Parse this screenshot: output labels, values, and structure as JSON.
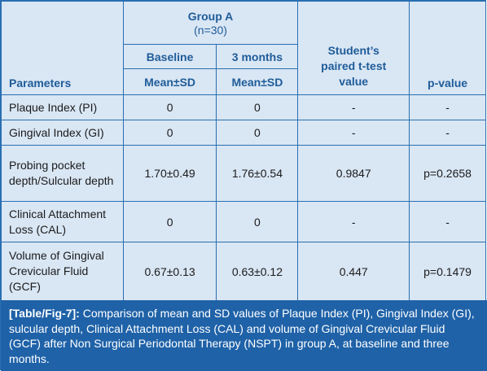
{
  "header": {
    "group": "Group A",
    "n": "(n=30)",
    "baseline": "Baseline",
    "three_months": "3 months",
    "parameters": "Parameters",
    "mean_sd_1": "Mean±SD",
    "mean_sd_2": "Mean±SD",
    "ttest": "Student’s paired t-test value",
    "pvalue": "p-value"
  },
  "rows": [
    {
      "param": "Plaque Index (PI)",
      "baseline": "0",
      "months3": "0",
      "t": "-",
      "p": "-"
    },
    {
      "param": "Gingival Index (GI)",
      "baseline": "0",
      "months3": "0",
      "t": "-",
      "p": "-"
    },
    {
      "param": "Probing pocket depth/Sulcular depth",
      "baseline": "1.70±0.49",
      "months3": "1.76±0.54",
      "t": "0.9847",
      "p": "p=0.2658"
    },
    {
      "param": "Clinical Attachment Loss (CAL)",
      "baseline": "0",
      "months3": "0",
      "t": "-",
      "p": "-"
    },
    {
      "param": "Volume of Gingival Crevicular Fluid (GCF)",
      "baseline": "0.67±0.13",
      "months3": "0.63±0.12",
      "t": "0.447",
      "p": "p=0.1479"
    }
  ],
  "caption": {
    "label": "[Table/Fig-7]:",
    "text": "Comparison of mean and SD values of Plaque Index (PI), Gingival Index (GI), sulcular depth, Clinical Attachment Loss (CAL) and volume of Gingival Crevicular Fluid (GCF) after Non Surgical Periodontal Therapy (NSPT) in group A, at baseline and three months."
  }
}
